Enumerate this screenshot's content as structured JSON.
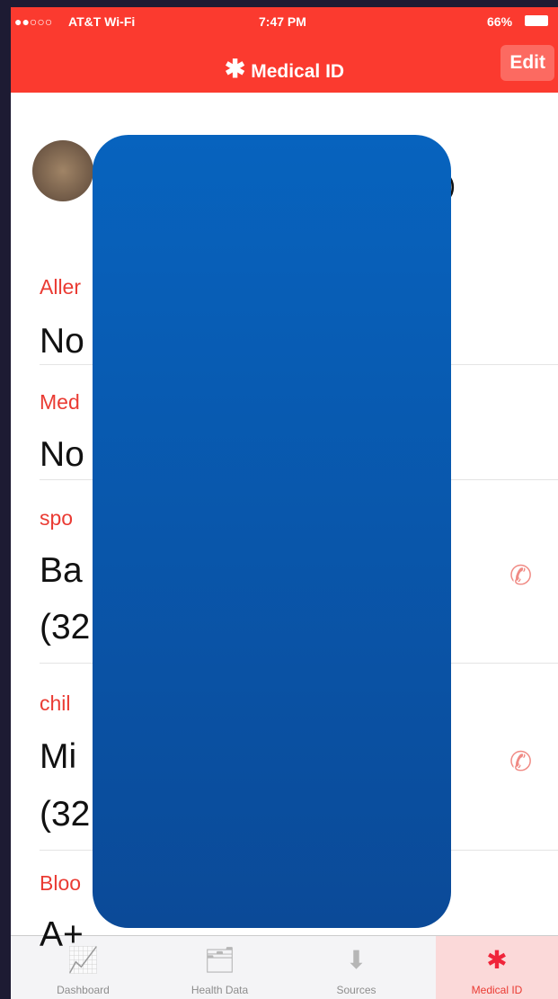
{
  "status_bar": {
    "carrier": "AT&T Wi-Fi",
    "time": "7:47 PM",
    "battery": "66%"
  },
  "header": {
    "title": "Medical ID",
    "edit": "Edit"
  },
  "profile": {
    "name_tail": ")"
  },
  "fields": [
    {
      "label": "Aller",
      "lines": [
        "No"
      ]
    },
    {
      "label": "Med",
      "lines": [
        "No"
      ]
    },
    {
      "label": "spo",
      "lines": [
        "Ba",
        "(32"
      ]
    },
    {
      "label": "chil",
      "lines": [
        "Mi",
        "(32"
      ]
    },
    {
      "label": "Bloo",
      "lines": [
        "A+"
      ]
    }
  ],
  "tabs": [
    "Dashboard",
    "Health Data",
    "Sources",
    "Medical ID"
  ]
}
